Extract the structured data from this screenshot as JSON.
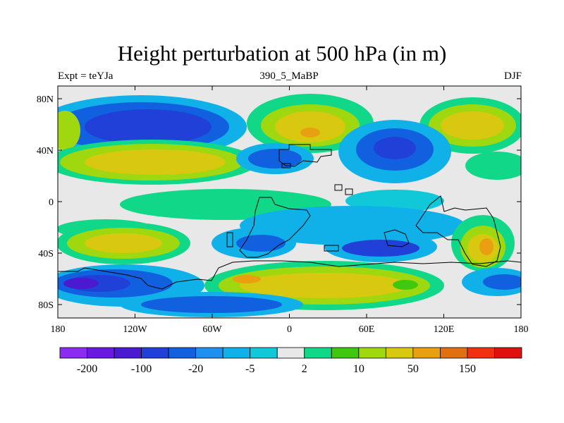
{
  "chart_data": {
    "type": "heatmap",
    "title": "Height perturbation at 500 hPa (in m)",
    "subtitle_left": "Expt = teYJa",
    "subtitle_center": "390_5_MaBP",
    "subtitle_right": "DJF",
    "x_ticks": [
      "180",
      "120W",
      "60W",
      "0",
      "60E",
      "120E",
      "180"
    ],
    "y_ticks": [
      "80N",
      "40N",
      "0",
      "40S",
      "80S"
    ],
    "colorbar": {
      "colors": [
        "#8c2cf0",
        "#6a1ae0",
        "#4a1ad0",
        "#2040d8",
        "#1060e0",
        "#2090f0",
        "#10b0e8",
        "#10c8d8",
        "#e8e8e8",
        "#10d888",
        "#40c810",
        "#a0d810",
        "#d8c810",
        "#e8a010",
        "#e07010",
        "#f03010",
        "#e01010"
      ],
      "labels": [
        "-200",
        "-100",
        "-20",
        "-5",
        "2",
        "10",
        "50",
        "150"
      ]
    },
    "colors": {
      "background": "#e8e8e8",
      "coastline": "#000000"
    }
  }
}
